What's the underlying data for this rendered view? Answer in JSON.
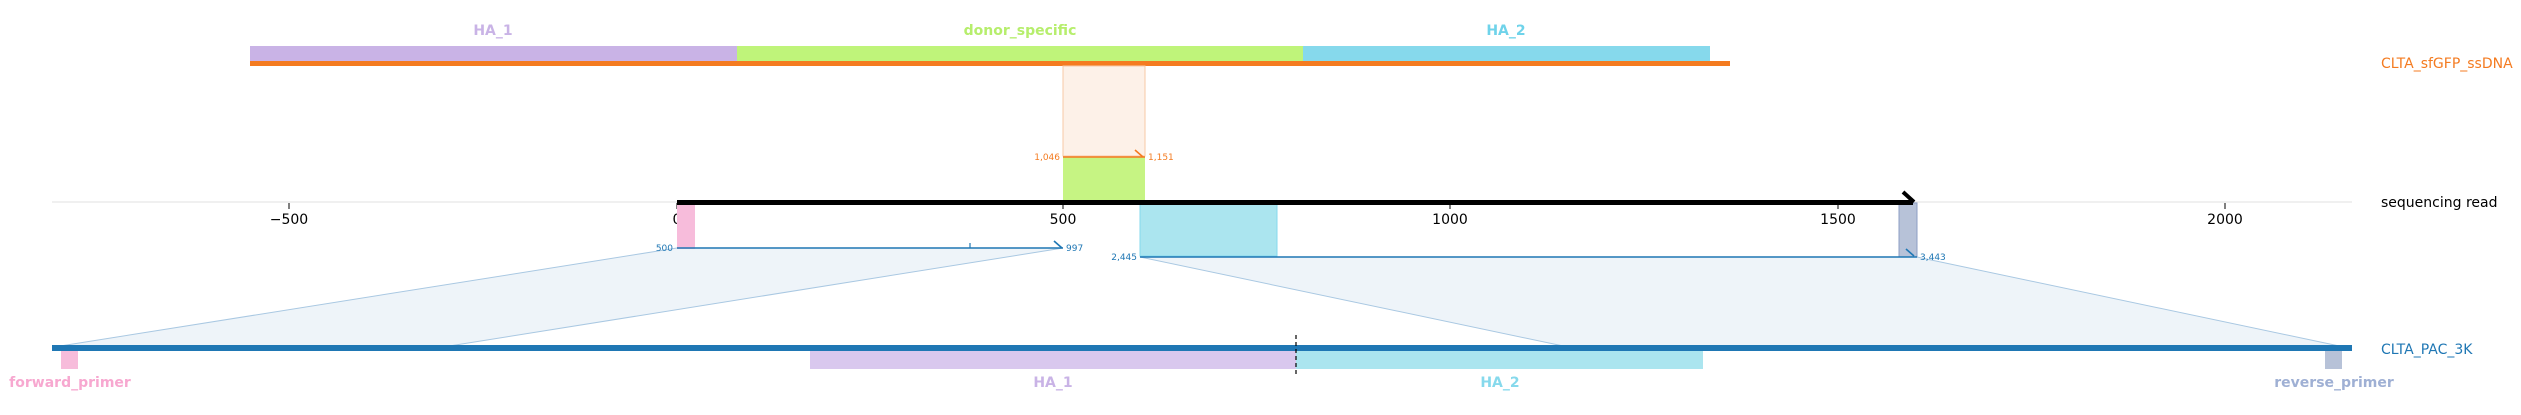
{
  "tracks": {
    "donor": {
      "label": "CLTA_sfGFP_ssDNA",
      "color": "#f47b20"
    },
    "read": {
      "label": "sequencing read",
      "color": "#000000"
    },
    "reference": {
      "label": "CLTA_PAC_3K",
      "color": "#1f77b4"
    }
  },
  "donor_features": [
    {
      "label": "HA_1",
      "color": "#c9b3e6"
    },
    {
      "label": "donor_specific",
      "color": "#bff47a"
    },
    {
      "label": "HA_2",
      "color": "#86d9ec"
    }
  ],
  "reference_features": [
    {
      "label": "forward_primer",
      "color": "#f7a8d0"
    },
    {
      "label": "HA_1",
      "color": "#c9b3e6"
    },
    {
      "label": "HA_2",
      "color": "#86d9ec"
    },
    {
      "label": "reverse_primer",
      "color": "#9fb0d4"
    }
  ],
  "axis": {
    "ticks": [
      "−500",
      "0",
      "500",
      "1000",
      "1500",
      "2000"
    ]
  },
  "alignments": {
    "donor": {
      "start": "1,046",
      "end": "1,151"
    },
    "ref_left": {
      "start": "500",
      "end": "997"
    },
    "ref_right": {
      "start": "2,445",
      "end": "3,443"
    }
  }
}
